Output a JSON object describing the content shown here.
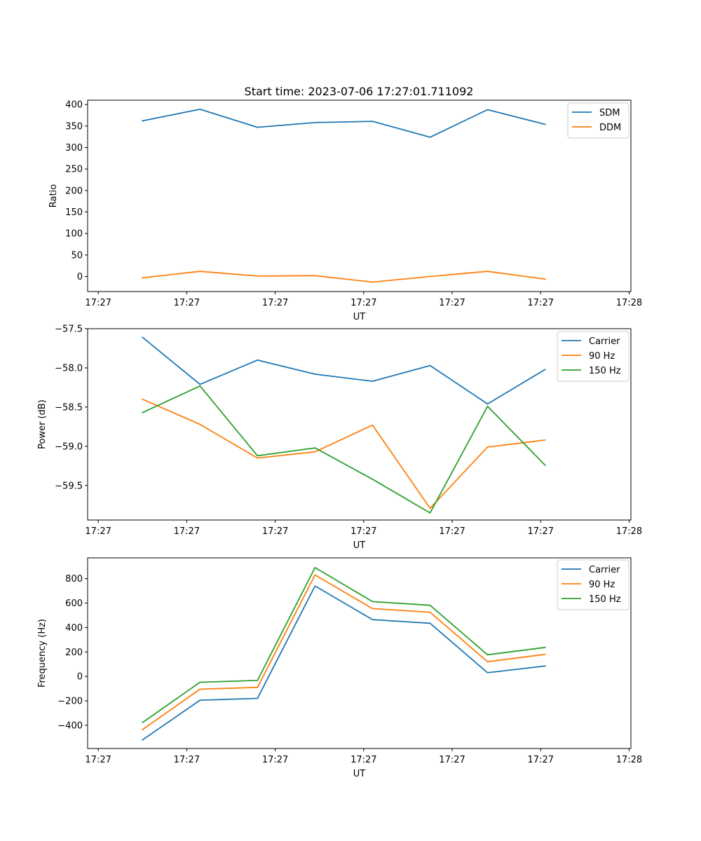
{
  "figure_title": "Start time: 2023-07-06 17:27:01.711092",
  "chart_data": [
    {
      "type": "line",
      "title": "Start time: 2023-07-06 17:27:01.711092",
      "xlabel": "UT",
      "ylabel": "Ratio",
      "x_tick_values": [
        0,
        1,
        2,
        3,
        4,
        5,
        6
      ],
      "x_tick_labels": [
        "17:27",
        "17:27",
        "17:27",
        "17:27",
        "17:27",
        "17:27",
        "17:28"
      ],
      "x_points": [
        0.5,
        1.15,
        1.8,
        2.45,
        3.1,
        3.75,
        4.4,
        5.05
      ],
      "xlim": [
        -0.12,
        6.02
      ],
      "ylim": [
        -35,
        410
      ],
      "y_ticks": [
        0,
        50,
        100,
        150,
        200,
        250,
        300,
        350,
        400
      ],
      "legend_position": "top-right",
      "series": [
        {
          "name": "SDM",
          "color": "#1f77b4",
          "values": [
            362,
            389,
            347,
            358,
            361,
            324,
            388,
            354
          ]
        },
        {
          "name": "DDM",
          "color": "#ff7f0e",
          "values": [
            -3,
            12,
            1,
            2,
            -13,
            0,
            12,
            -6
          ]
        }
      ]
    },
    {
      "type": "line",
      "title": "",
      "xlabel": "UT",
      "ylabel": "Power (dB)",
      "x_tick_values": [
        0,
        1,
        2,
        3,
        4,
        5,
        6
      ],
      "x_tick_labels": [
        "17:27",
        "17:27",
        "17:27",
        "17:27",
        "17:27",
        "17:27",
        "17:28"
      ],
      "x_points": [
        0.5,
        1.15,
        1.8,
        2.45,
        3.1,
        3.75,
        4.4,
        5.05
      ],
      "xlim": [
        -0.12,
        6.02
      ],
      "ylim": [
        -59.94,
        -57.5
      ],
      "y_ticks": [
        -57.5,
        -58.0,
        -58.5,
        -59.0,
        -59.5
      ],
      "y_tick_labels": [
        "−57.5",
        "−58.0",
        "−58.5",
        "−59.0",
        "−59.5"
      ],
      "legend_position": "top-right",
      "series": [
        {
          "name": "Carrier",
          "color": "#1f77b4",
          "values": [
            -57.61,
            -58.21,
            -57.9,
            -58.08,
            -58.17,
            -57.97,
            -58.46,
            -58.02
          ]
        },
        {
          "name": "90 Hz",
          "color": "#ff7f0e",
          "values": [
            -58.4,
            -58.72,
            -59.15,
            -59.07,
            -58.73,
            -59.79,
            -59.01,
            -58.92
          ]
        },
        {
          "name": "150 Hz",
          "color": "#2ca02c",
          "values": [
            -58.57,
            -58.23,
            -59.12,
            -59.02,
            -59.42,
            -59.85,
            -58.49,
            -59.24
          ]
        }
      ]
    },
    {
      "type": "line",
      "title": "",
      "xlabel": "UT",
      "ylabel": "Frequency (Hz)",
      "x_tick_values": [
        0,
        1,
        2,
        3,
        4,
        5,
        6
      ],
      "x_tick_labels": [
        "17:27",
        "17:27",
        "17:27",
        "17:27",
        "17:27",
        "17:27",
        "17:28"
      ],
      "x_points": [
        0.5,
        1.15,
        1.8,
        2.45,
        3.1,
        3.75,
        4.4,
        5.05
      ],
      "xlim": [
        -0.12,
        6.02
      ],
      "ylim": [
        -590,
        970
      ],
      "y_ticks": [
        -400,
        -200,
        0,
        200,
        400,
        600,
        800
      ],
      "y_tick_labels": [
        "−400",
        "−200",
        "0",
        "200",
        "400",
        "600",
        "800"
      ],
      "legend_position": "top-right",
      "series": [
        {
          "name": "Carrier",
          "color": "#1f77b4",
          "values": [
            -520,
            -195,
            -180,
            740,
            465,
            435,
            30,
            85
          ]
        },
        {
          "name": "90 Hz",
          "color": "#ff7f0e",
          "values": [
            -435,
            -105,
            -90,
            830,
            555,
            525,
            120,
            180
          ]
        },
        {
          "name": "150 Hz",
          "color": "#2ca02c",
          "values": [
            -378,
            -48,
            -33,
            890,
            612,
            582,
            177,
            237
          ]
        }
      ]
    }
  ]
}
